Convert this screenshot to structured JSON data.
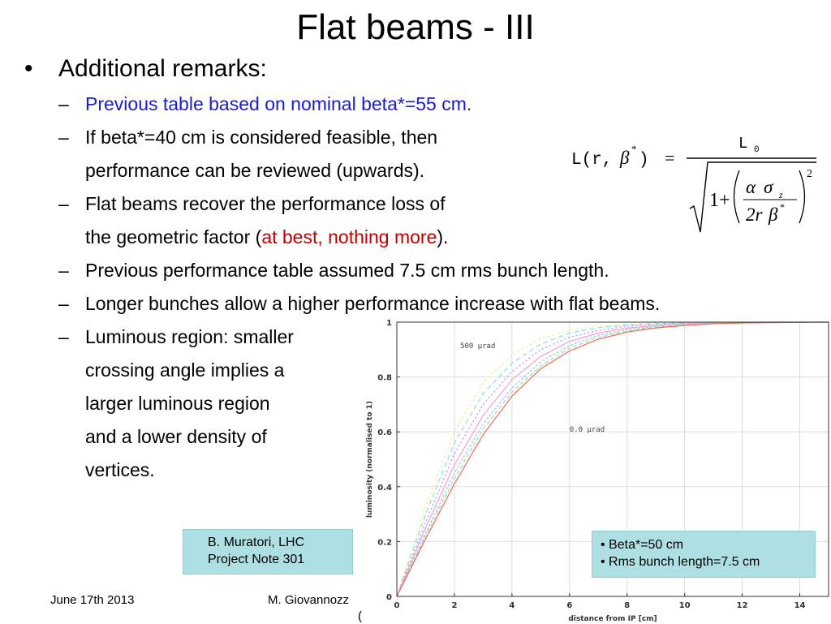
{
  "slide": {
    "title": "Flat beams - III",
    "bullet": {
      "marker": "•",
      "text": "Additional remarks:"
    },
    "subbullets": [
      {
        "dash": "–",
        "lines": [
          {
            "parts": [
              {
                "text": "Previous table based on nominal beta*=55 cm.",
                "color": "#1a1ad8"
              }
            ]
          }
        ]
      },
      {
        "dash": "–",
        "lines": [
          {
            "parts": [
              {
                "text": "If beta*=40 cm is considered feasible, then"
              }
            ]
          },
          {
            "parts": [
              {
                "text": "performance can be reviewed (upwards)."
              }
            ]
          }
        ]
      },
      {
        "dash": "–",
        "lines": [
          {
            "parts": [
              {
                "text": "Flat beams recover the performance loss of"
              }
            ]
          },
          {
            "parts": [
              {
                "text": "the geometric factor ("
              },
              {
                "text": "at best, nothing more",
                "color": "#c00000"
              },
              {
                "text": ")."
              }
            ]
          }
        ]
      },
      {
        "dash": "–",
        "lines": [
          {
            "parts": [
              {
                "text": "Previous performance table assumed 7.5 cm rms bunch length."
              }
            ]
          }
        ]
      },
      {
        "dash": "–",
        "lines": [
          {
            "parts": [
              {
                "text": "Longer bunches allow a higher performance increase with flat beams."
              }
            ]
          }
        ]
      },
      {
        "dash": "–",
        "lines": [
          {
            "parts": [
              {
                "text": "Luminous region: smaller"
              }
            ]
          },
          {
            "parts": [
              {
                "text": "crossing angle implies a"
              }
            ]
          },
          {
            "parts": [
              {
                "text": "larger luminous region"
              }
            ]
          },
          {
            "parts": [
              {
                "text": "and a lower density of"
              }
            ]
          },
          {
            "parts": [
              {
                "text": "vertices."
              }
            ]
          }
        ]
      }
    ],
    "formula": {
      "lhs": "L(r,",
      "beta": "β",
      "star": "*",
      "lhs_close": ")",
      "equals": "=",
      "numerator": "L",
      "numerator_sub": "0",
      "one_plus": "1+",
      "alpha": "α",
      "sigma": "σ",
      "sigma_sub": "z",
      "den": "2r",
      "den_beta": "β",
      "den_star": "*",
      "power": "2"
    },
    "reference_box": {
      "line1": "B. Muratori, LHC",
      "line2": "Project Note 301"
    },
    "params_box": {
      "items": [
        "Beta*=50 cm",
        "Rms bunch length=7.5 cm"
      ]
    },
    "footer": {
      "date": "June 17th 2013",
      "author": "M. Giovannozz",
      "extra": "("
    }
  },
  "chart_data": {
    "type": "line",
    "xlabel": "distance from IP [cm]",
    "ylabel": "luminosity (normalised to 1)",
    "xlim": [
      0,
      15
    ],
    "ylim": [
      0,
      1
    ],
    "xticks": [
      0,
      2,
      4,
      6,
      8,
      10,
      12,
      14
    ],
    "yticks": [
      0,
      0.2,
      0.4,
      0.6,
      0.8,
      1
    ],
    "yticklabels": [
      "0",
      "0.2",
      "0.4",
      "0.6",
      "0.8",
      "1"
    ],
    "annotations": [
      {
        "text": "500 µrad",
        "x": 2.2,
        "y": 0.905
      },
      {
        "text": "0.0 µrad",
        "x": 6.0,
        "y": 0.6
      }
    ],
    "x": [
      0,
      1,
      2,
      3,
      4,
      5,
      6,
      7,
      8,
      9,
      10,
      11,
      12,
      13,
      14,
      15
    ],
    "series": [
      {
        "color": "#f2ef8a",
        "dash": "3,3",
        "values": [
          0,
          0.33,
          0.6,
          0.78,
          0.88,
          0.94,
          0.97,
          0.985,
          0.993,
          0.997,
          0.999,
          1,
          1,
          1,
          1,
          1
        ]
      },
      {
        "color": "#7fe0ee",
        "dash": "6,4",
        "values": [
          0,
          0.3,
          0.56,
          0.74,
          0.85,
          0.92,
          0.96,
          0.98,
          0.99,
          0.995,
          0.998,
          0.999,
          1,
          1,
          1,
          1
        ]
      },
      {
        "color": "#b98be0",
        "dash": "2,3",
        "values": [
          0,
          0.27,
          0.52,
          0.7,
          0.82,
          0.9,
          0.945,
          0.97,
          0.985,
          0.992,
          0.996,
          0.998,
          0.999,
          1,
          1,
          1
        ]
      },
      {
        "color": "#f4a3c8",
        "dash": "",
        "values": [
          0,
          0.25,
          0.48,
          0.66,
          0.79,
          0.875,
          0.93,
          0.96,
          0.978,
          0.988,
          0.994,
          0.997,
          0.999,
          1,
          1,
          1
        ]
      },
      {
        "color": "#9ac4f0",
        "dash": "3,2",
        "values": [
          0,
          0.23,
          0.45,
          0.63,
          0.76,
          0.855,
          0.915,
          0.952,
          0.973,
          0.985,
          0.992,
          0.996,
          0.998,
          0.999,
          1,
          1
        ]
      },
      {
        "color": "#9be29b",
        "dash": "5,3",
        "values": [
          0,
          0.22,
          0.43,
          0.61,
          0.745,
          0.84,
          0.905,
          0.945,
          0.968,
          0.982,
          0.99,
          0.995,
          0.997,
          0.999,
          1,
          1
        ]
      },
      {
        "color": "#f06a5a",
        "dash": "",
        "values": [
          0,
          0.21,
          0.41,
          0.59,
          0.73,
          0.83,
          0.895,
          0.938,
          0.964,
          0.979,
          0.988,
          0.994,
          0.997,
          0.998,
          0.999,
          1
        ]
      }
    ]
  }
}
